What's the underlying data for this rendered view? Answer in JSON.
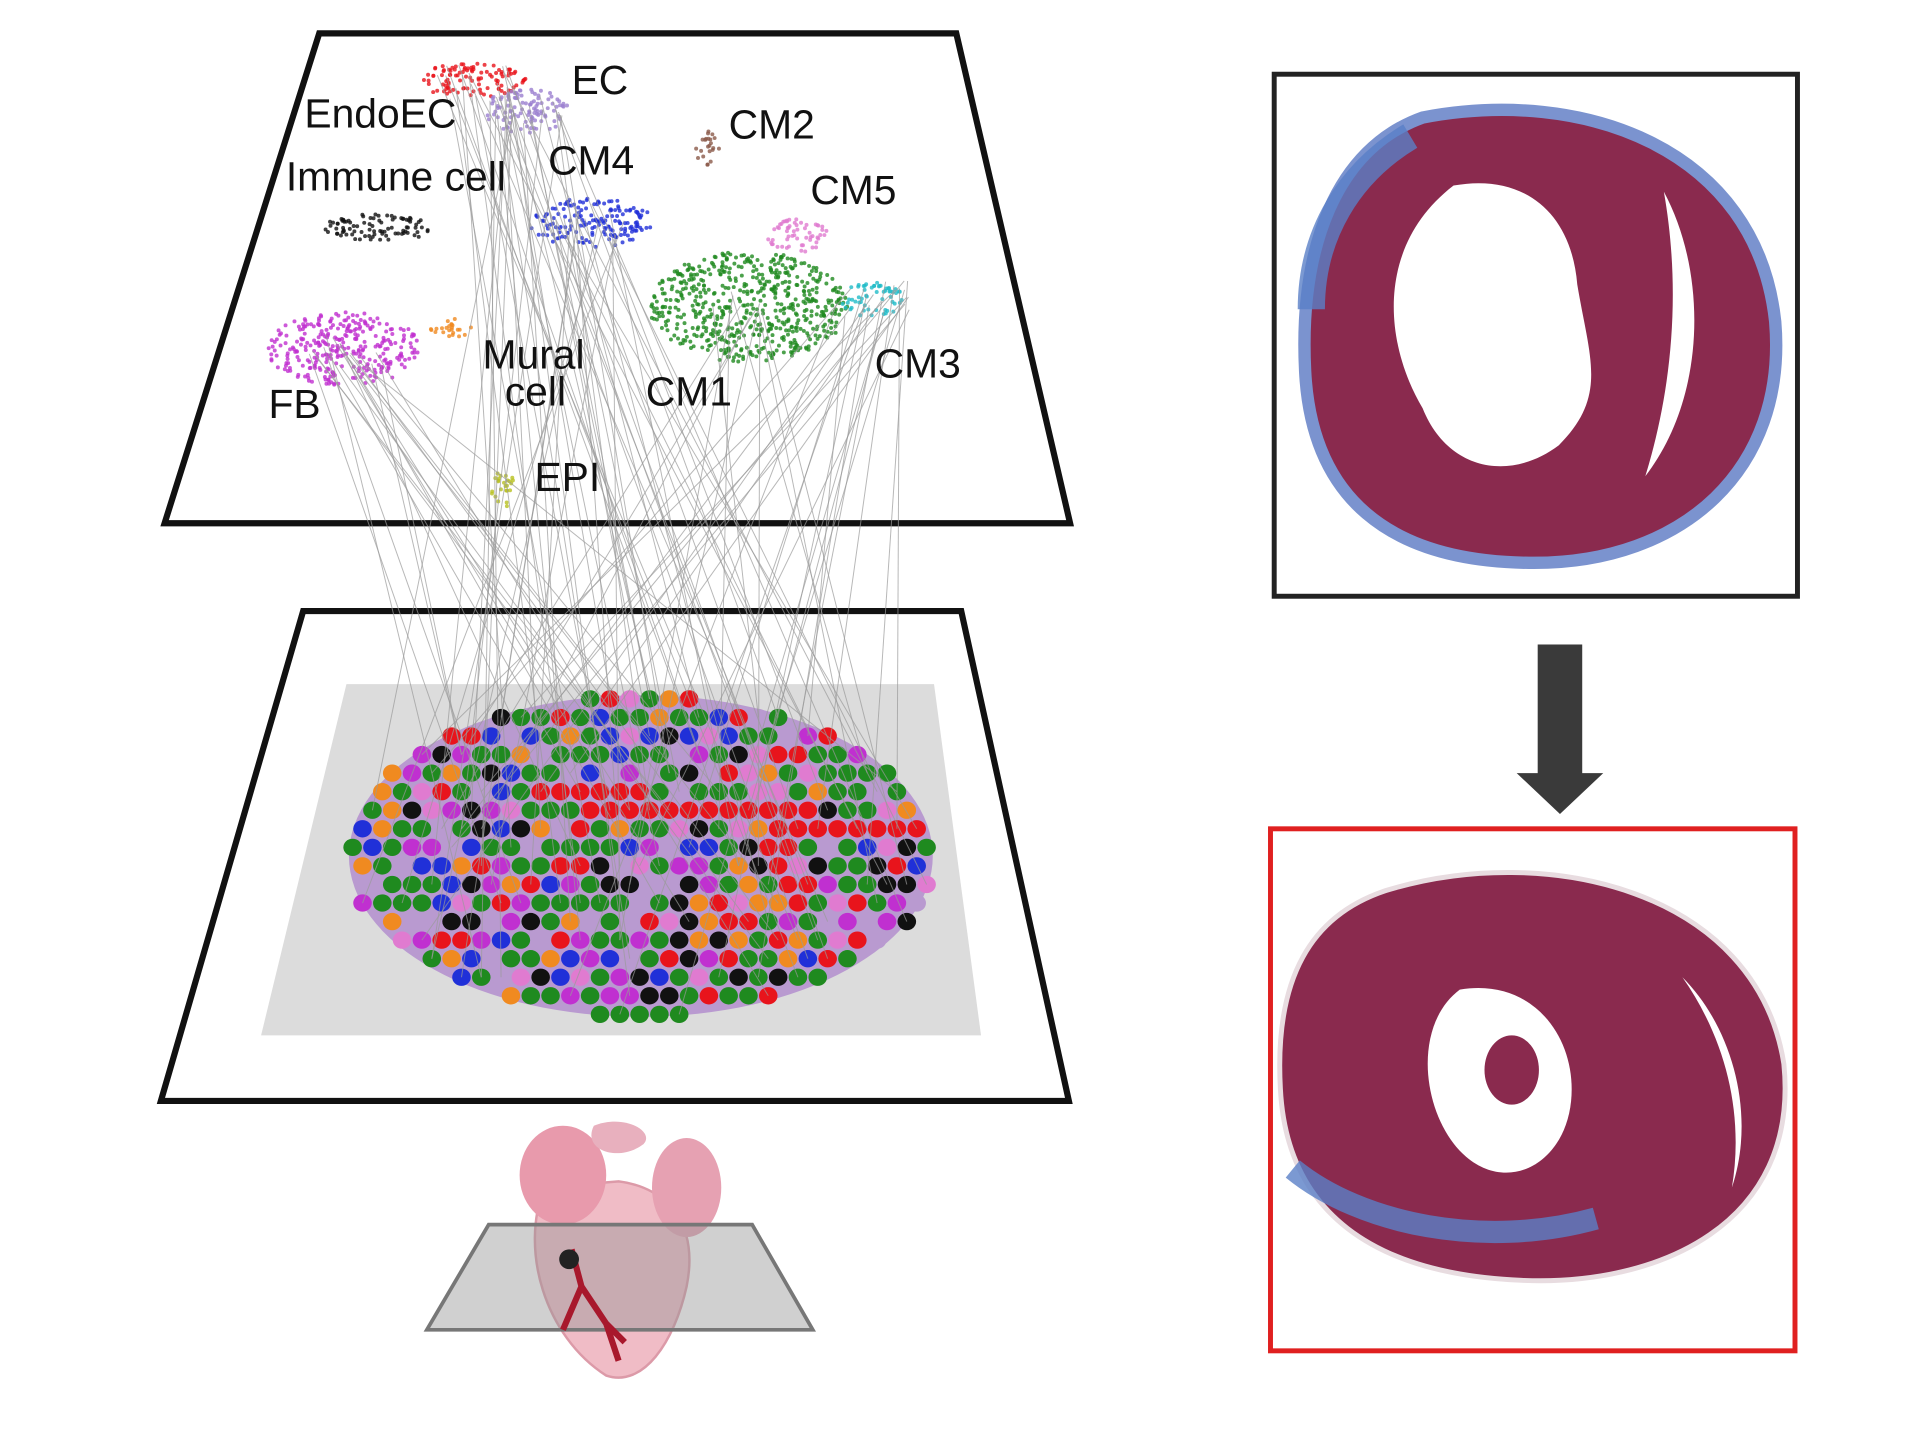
{
  "umap_labels": [
    {
      "label": "EndoEC"
    },
    {
      "label": "EC"
    },
    {
      "label": "CM2"
    },
    {
      "label": "Immune cell"
    },
    {
      "label": "CM4"
    },
    {
      "label": "CM5"
    },
    {
      "label_lines": [
        "Mural",
        "cell"
      ]
    },
    {
      "label": "FB"
    },
    {
      "label": "CM1"
    },
    {
      "label": "CM3"
    },
    {
      "label": "EPI"
    }
  ]
}
